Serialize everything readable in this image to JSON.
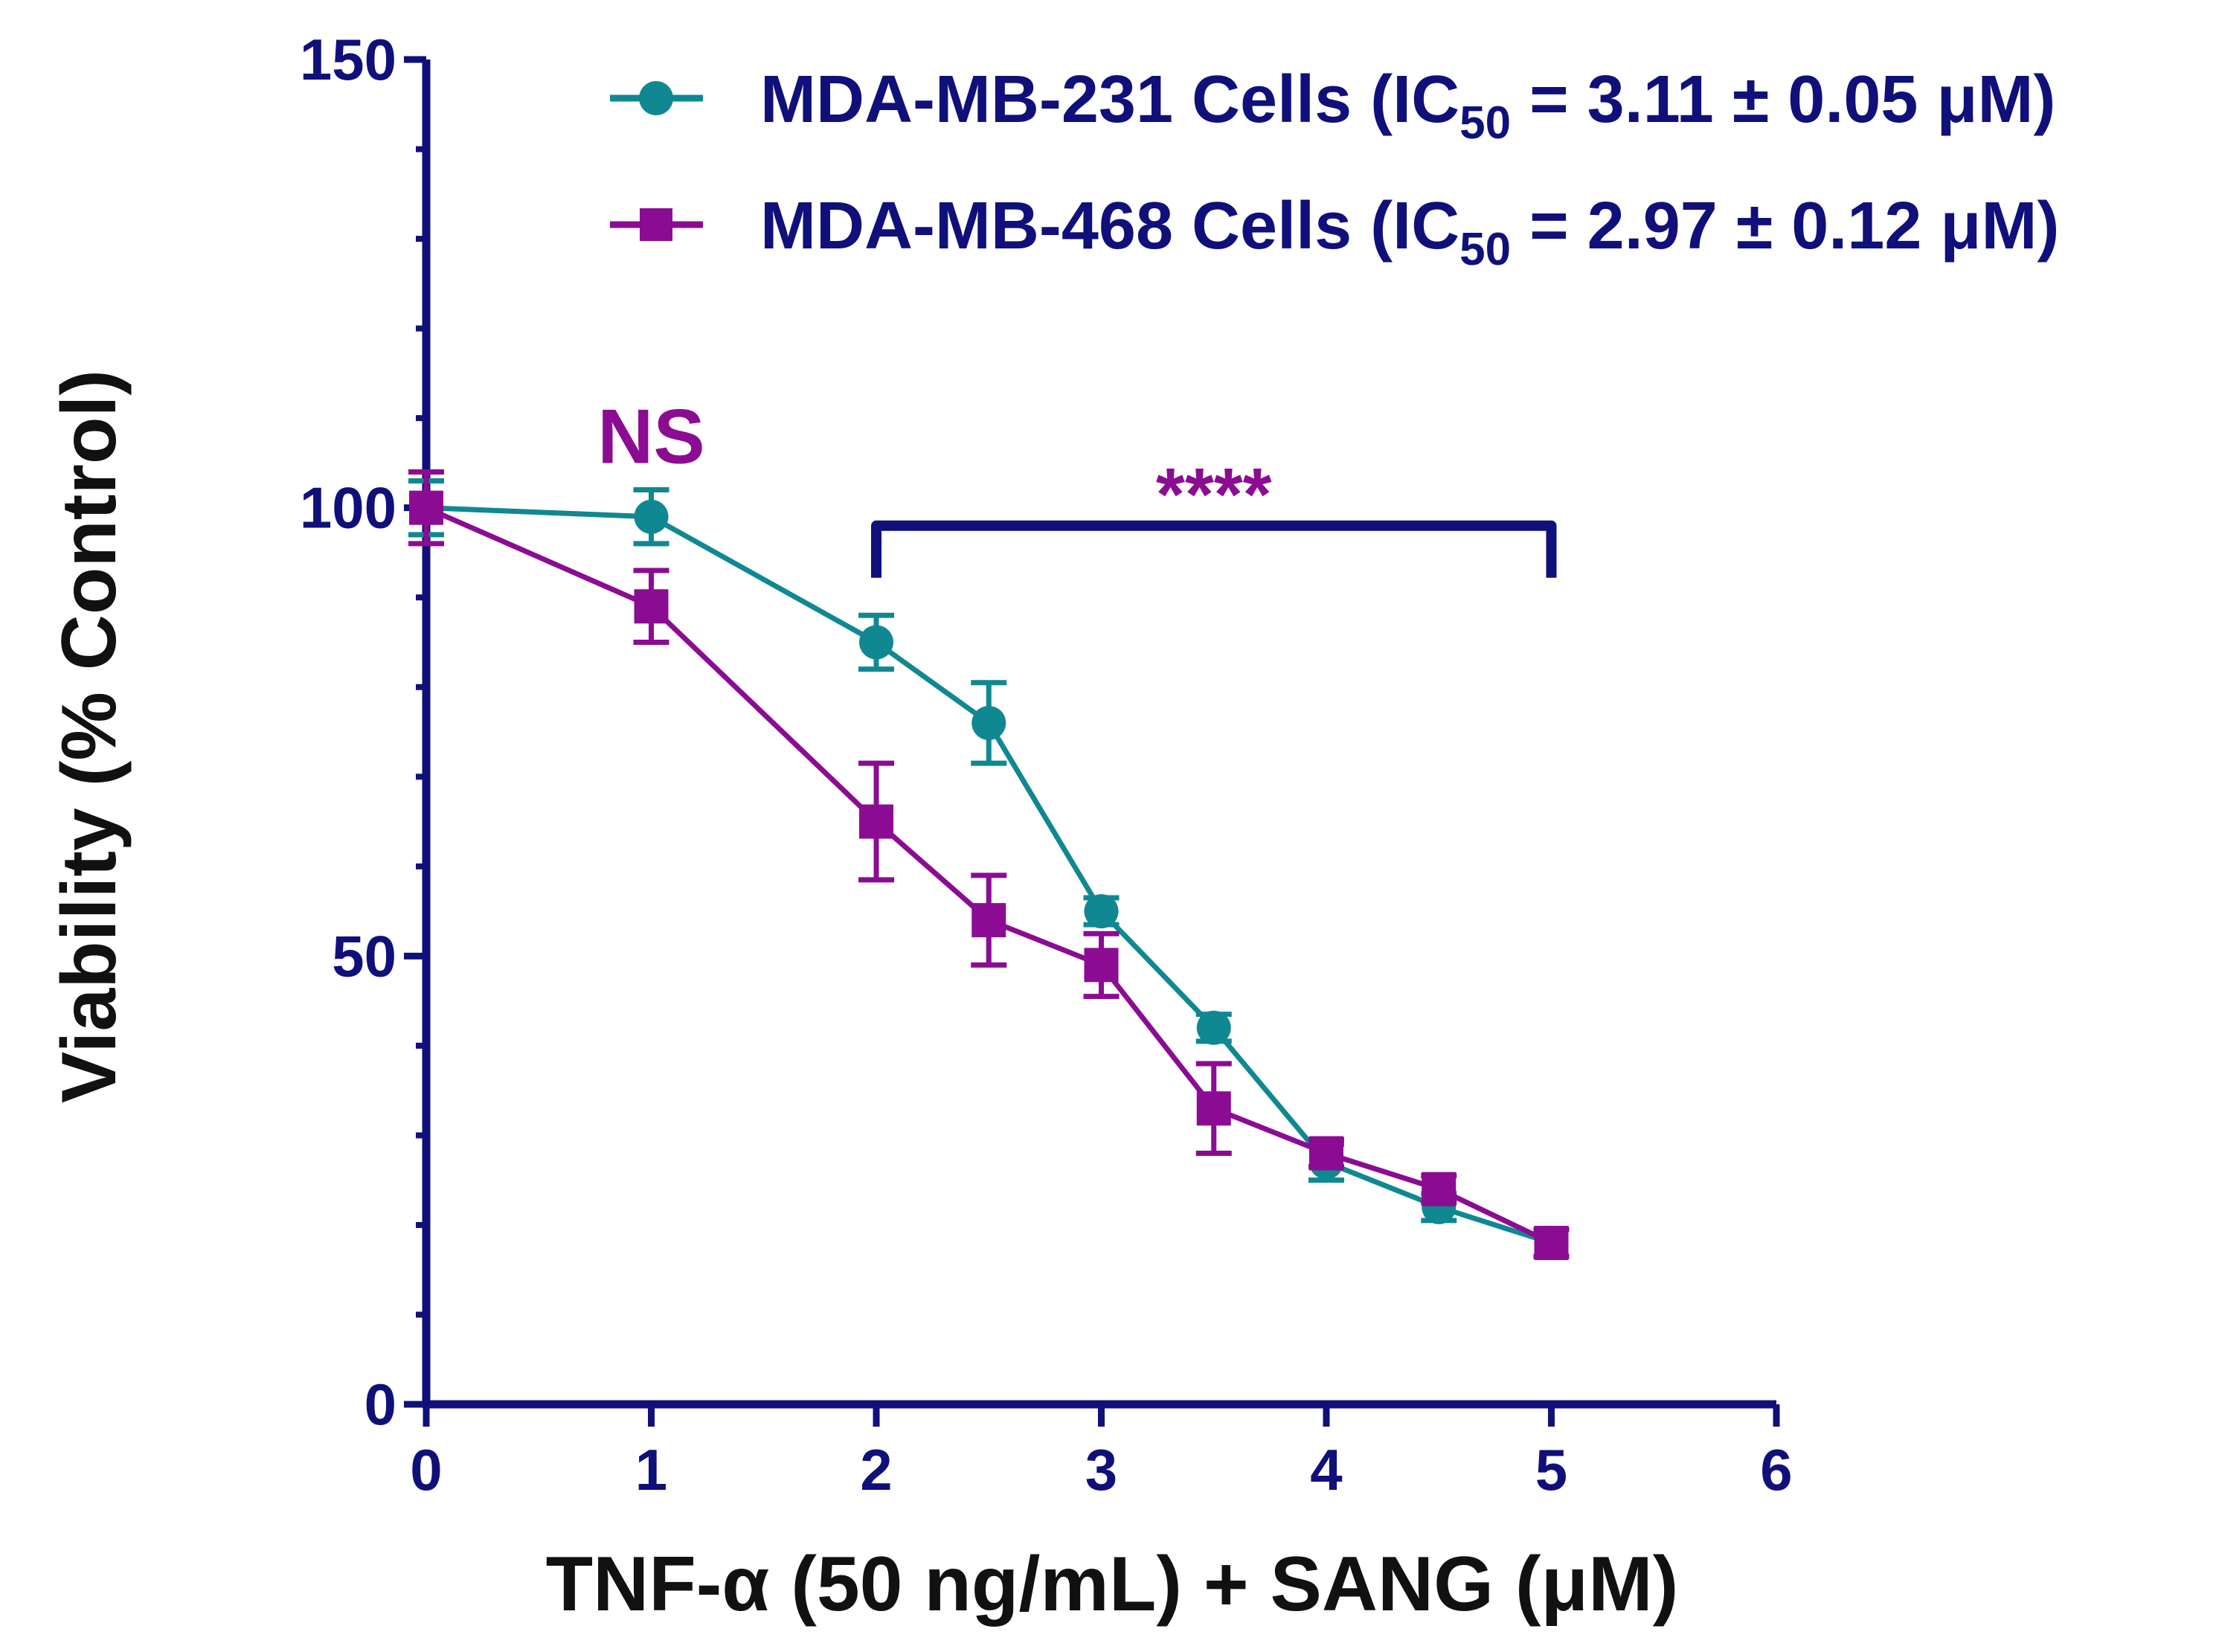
{
  "chart_data": {
    "type": "line",
    "title": "",
    "xlabel": "TNF-α (50 ng/mL) + SANG (μM)",
    "ylabel": "Viability (% Control)",
    "xlim": [
      0,
      6
    ],
    "ylim": [
      0,
      150
    ],
    "x_ticks": [
      "0",
      "1",
      "2",
      "3",
      "4",
      "5",
      "6"
    ],
    "y_ticks": [
      "0",
      "50",
      "100",
      "150"
    ],
    "grid": false,
    "legend_position": "top-right",
    "series": [
      {
        "name": "MDA-MB-231 Cells",
        "legend_prefix": "MDA-MB-231 Cells (IC",
        "legend_sub": "50",
        "legend_suffix": " = 3.11 ± 0.05 μM)",
        "marker": "circle",
        "color": "#108891",
        "x": [
          0,
          1,
          2,
          2.5,
          3,
          3.5,
          4,
          4.5,
          5
        ],
        "y": [
          100,
          99,
          85,
          76,
          55,
          42,
          27,
          22,
          18
        ],
        "err": [
          3,
          3,
          3,
          4.5,
          1.5,
          1.5,
          2,
          1.5,
          1.5
        ]
      },
      {
        "name": "MDA-MB-468 Cells",
        "legend_prefix": "MDA-MB-468 Cells (IC",
        "legend_sub": "50",
        "legend_suffix": " = 2.97 ± 0.12 μM)",
        "marker": "square",
        "color": "#8b0c93",
        "x": [
          0,
          1,
          2,
          2.5,
          3,
          3.5,
          4,
          4.5,
          5
        ],
        "y": [
          100,
          89,
          65,
          54,
          49,
          33,
          28,
          24,
          18
        ],
        "err": [
          4,
          4,
          6.5,
          5,
          3.5,
          5,
          1.5,
          1.5,
          1.5
        ]
      }
    ],
    "annotations": [
      {
        "text": "NS",
        "x": 1,
        "y": 100
      },
      {
        "text": "****",
        "x_from": 2,
        "x_to": 5,
        "y": 98
      }
    ]
  },
  "colors": {
    "axis": "#10107a",
    "axis_title": "#111111",
    "annotation": "#8b0c93"
  }
}
